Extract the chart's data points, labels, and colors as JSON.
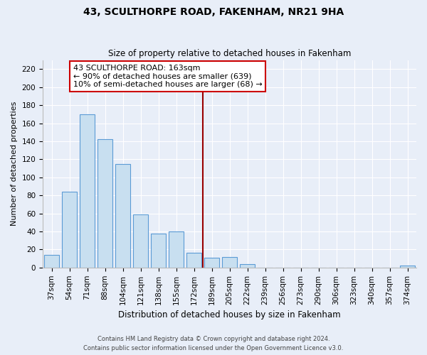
{
  "title": "43, SCULTHORPE ROAD, FAKENHAM, NR21 9HA",
  "subtitle": "Size of property relative to detached houses in Fakenham",
  "xlabel": "Distribution of detached houses by size in Fakenham",
  "ylabel": "Number of detached properties",
  "categories": [
    "37sqm",
    "54sqm",
    "71sqm",
    "88sqm",
    "104sqm",
    "121sqm",
    "138sqm",
    "155sqm",
    "172sqm",
    "189sqm",
    "205sqm",
    "222sqm",
    "239sqm",
    "256sqm",
    "273sqm",
    "290sqm",
    "306sqm",
    "323sqm",
    "340sqm",
    "357sqm",
    "374sqm"
  ],
  "values": [
    14,
    84,
    170,
    142,
    115,
    59,
    38,
    40,
    16,
    11,
    12,
    4,
    0,
    0,
    0,
    0,
    0,
    0,
    0,
    0,
    2
  ],
  "bar_color": "#c8dff0",
  "bar_edge_color": "#5b9bd5",
  "vline_x_index": 8,
  "vline_color": "#990000",
  "annotation_title": "43 SCULTHORPE ROAD: 163sqm",
  "annotation_line1": "← 90% of detached houses are smaller (639)",
  "annotation_line2": "10% of semi-detached houses are larger (68) →",
  "annotation_box_color": "#ffffff",
  "annotation_box_edge": "#cc0000",
  "ylim": [
    0,
    230
  ],
  "yticks": [
    0,
    20,
    40,
    60,
    80,
    100,
    120,
    140,
    160,
    180,
    200,
    220
  ],
  "footer1": "Contains HM Land Registry data © Crown copyright and database right 2024.",
  "footer2": "Contains public sector information licensed under the Open Government Licence v3.0.",
  "bg_color": "#e8eef8",
  "grid_color": "#ffffff",
  "title_fontsize": 10,
  "subtitle_fontsize": 8.5,
  "ylabel_fontsize": 8,
  "xlabel_fontsize": 8.5,
  "tick_fontsize": 7.5,
  "footer_fontsize": 6.0,
  "annot_fontsize": 8.0
}
